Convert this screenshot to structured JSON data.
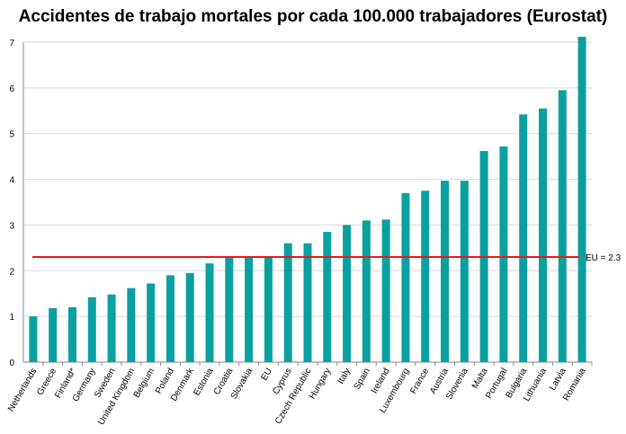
{
  "chart_data": {
    "type": "bar",
    "title": "Accidentes de trabajo mortales por cada 100.000 trabajadores (Eurostat)",
    "xlabel": "",
    "ylabel": "",
    "ylim": [
      0,
      7
    ],
    "yticks": [
      0,
      1,
      2,
      3,
      4,
      5,
      6,
      7
    ],
    "grid": true,
    "categories": [
      "Netherlands",
      "Greece",
      "Finland*",
      "Germany",
      "Sweden",
      "United Kingdom",
      "Belgium",
      "Poland",
      "Denmark",
      "Estonia",
      "Croatia",
      "Slovakia",
      "EU",
      "Cyprus",
      "Czech Republic",
      "Hungary",
      "Italy",
      "Spain",
      "Ireland",
      "Luxembourg",
      "France",
      "Austria",
      "Slovenia",
      "Malta",
      "Portugal",
      "Bulgaria",
      "Lithuania",
      "Latvia",
      "Romania"
    ],
    "values": [
      1.0,
      1.18,
      1.2,
      1.42,
      1.48,
      1.62,
      1.72,
      1.9,
      1.95,
      2.16,
      2.28,
      2.28,
      2.3,
      2.6,
      2.6,
      2.85,
      3.0,
      3.1,
      3.12,
      3.7,
      3.75,
      3.97,
      3.97,
      4.62,
      4.72,
      5.42,
      5.55,
      5.95,
      7.12
    ],
    "bar_color": "#0aa0a0",
    "reference_line": {
      "value": 2.3,
      "label": "EU = 2.3",
      "color": "#e8191a"
    }
  }
}
